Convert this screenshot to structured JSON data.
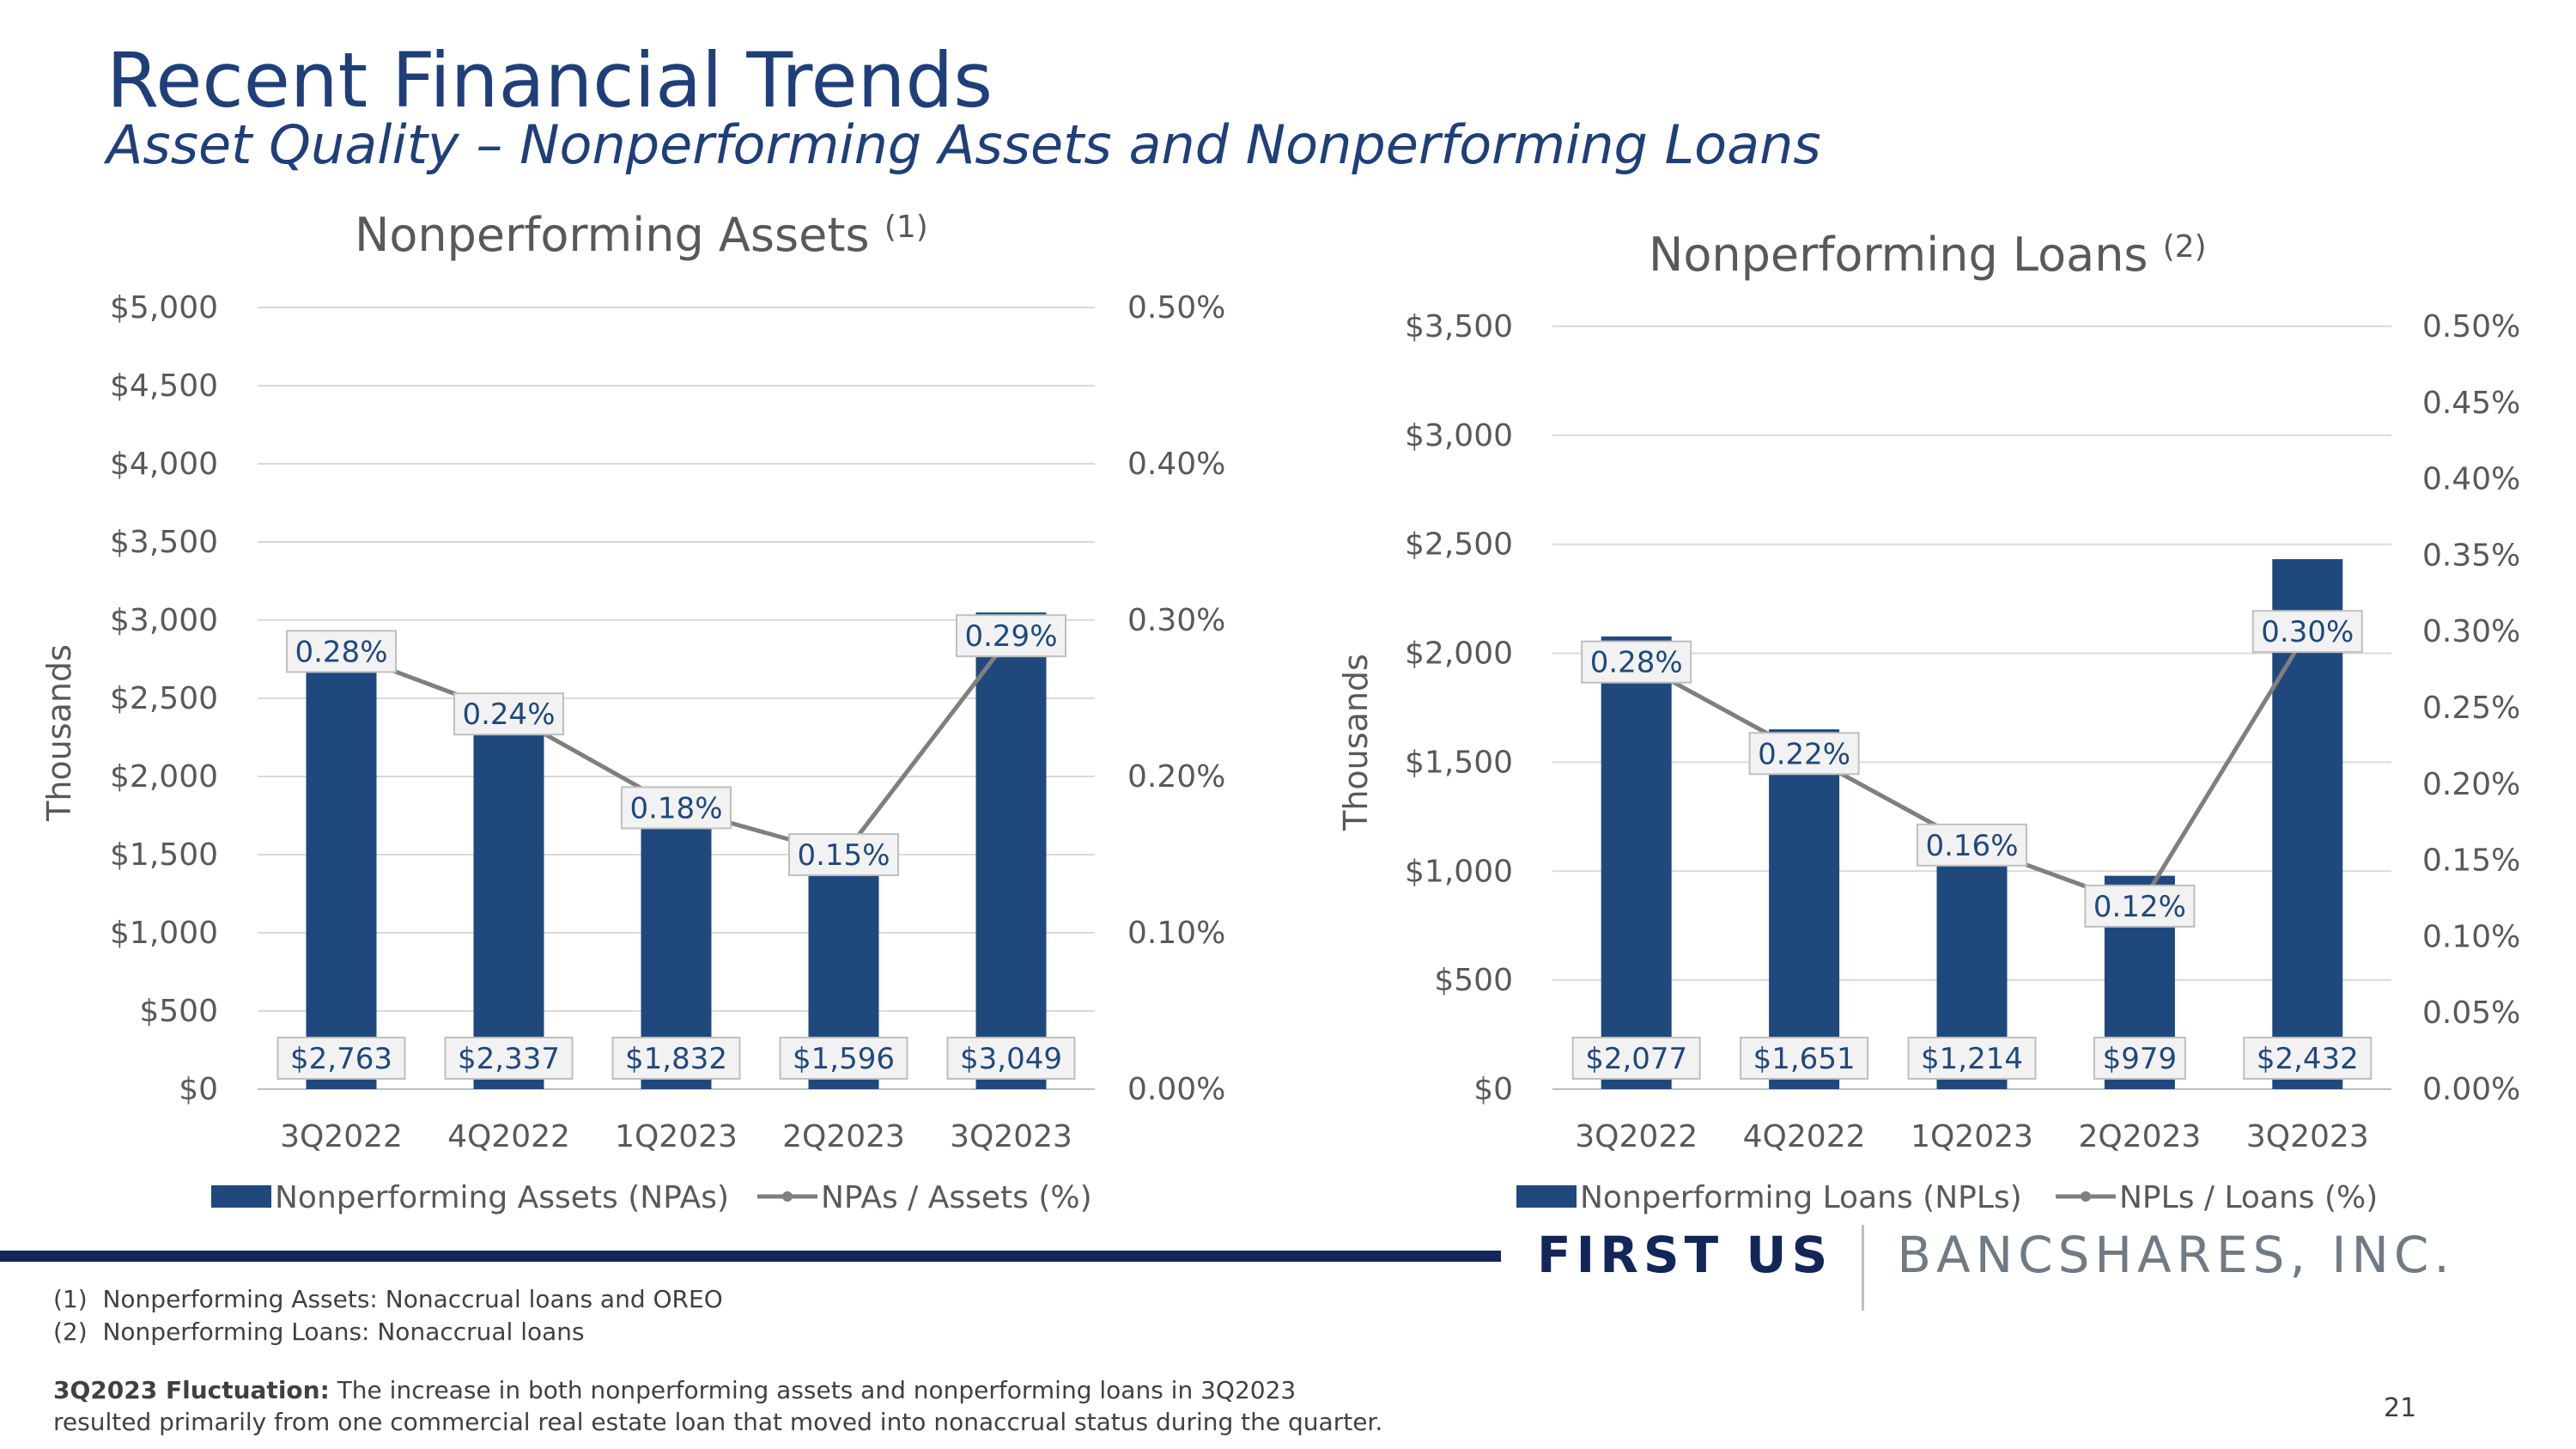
{
  "header": {
    "title": "Recent Financial Trends",
    "subtitle": "Asset Quality – Nonperforming Assets and Nonperforming Loans"
  },
  "colors": {
    "bar": "#1f497d",
    "line": "#7f7f7f",
    "title": "#1f3f7a",
    "rule": "#13265a"
  },
  "chart_data": [
    {
      "type": "bar",
      "title": "Nonperforming Assets",
      "title_sup": "(1)",
      "ylabel": "Thousands",
      "categories": [
        "3Q2022",
        "4Q2022",
        "1Q2023",
        "2Q2023",
        "3Q2023"
      ],
      "ylim": [
        0,
        5000
      ],
      "y2lim": [
        0,
        0.5
      ],
      "yticks": [
        "$0",
        "$500",
        "$1,000",
        "$1,500",
        "$2,000",
        "$2,500",
        "$3,000",
        "$3,500",
        "$4,000",
        "$4,500",
        "$5,000"
      ],
      "y2ticks": [
        "0.00%",
        "0.10%",
        "0.20%",
        "0.30%",
        "0.40%",
        "0.50%"
      ],
      "grid": true,
      "legend_position": "bottom",
      "series": [
        {
          "name": "Nonperforming Assets (NPAs)",
          "kind": "bar",
          "axis": "left",
          "values": [
            2763,
            2337,
            1832,
            1596,
            3049
          ],
          "labels": [
            "$2,763",
            "$2,337",
            "$1,832",
            "$1,596",
            "$3,049"
          ]
        },
        {
          "name": "NPAs / Assets (%)",
          "kind": "line",
          "axis": "right",
          "values": [
            0.28,
            0.24,
            0.18,
            0.15,
            0.29
          ],
          "labels": [
            "0.28%",
            "0.24%",
            "0.18%",
            "0.15%",
            "0.29%"
          ]
        }
      ]
    },
    {
      "type": "bar",
      "title": "Nonperforming Loans",
      "title_sup": "(2)",
      "ylabel": "Thousands",
      "categories": [
        "3Q2022",
        "4Q2022",
        "1Q2023",
        "2Q2023",
        "3Q2023"
      ],
      "ylim": [
        0,
        3500
      ],
      "y2lim": [
        0,
        0.5
      ],
      "yticks": [
        "$0",
        "$500",
        "$1,000",
        "$1,500",
        "$2,000",
        "$2,500",
        "$3,000",
        "$3,500"
      ],
      "y2ticks": [
        "0.00%",
        "0.05%",
        "0.10%",
        "0.15%",
        "0.20%",
        "0.25%",
        "0.30%",
        "0.35%",
        "0.40%",
        "0.45%",
        "0.50%"
      ],
      "grid": true,
      "legend_position": "bottom",
      "series": [
        {
          "name": "Nonperforming Loans (NPLs)",
          "kind": "bar",
          "axis": "left",
          "values": [
            2077,
            1651,
            1214,
            979,
            2432
          ],
          "labels": [
            "$2,077",
            "$1,651",
            "$1,214",
            "$979",
            "$2,432"
          ]
        },
        {
          "name": "NPLs / Loans (%)",
          "kind": "line",
          "axis": "right",
          "values": [
            0.28,
            0.22,
            0.16,
            0.12,
            0.3
          ],
          "labels": [
            "0.28%",
            "0.22%",
            "0.16%",
            "0.12%",
            "0.30%"
          ]
        }
      ]
    }
  ],
  "brand": {
    "part1": "FIRST US",
    "part2": "BANCSHARES, INC."
  },
  "footnotes": [
    {
      "marker": "(1)",
      "text": "Nonperforming Assets: Nonaccrual loans and OREO"
    },
    {
      "marker": "(2)",
      "text": "Nonperforming Loans: Nonaccrual loans"
    }
  ],
  "fluctuation": {
    "label": "3Q2023 Fluctuation:",
    "text": "The increase in both nonperforming assets and nonperforming loans in 3Q2023 resulted primarily from one commercial real estate loan that moved into nonaccrual status during the quarter."
  },
  "page_number": "21"
}
